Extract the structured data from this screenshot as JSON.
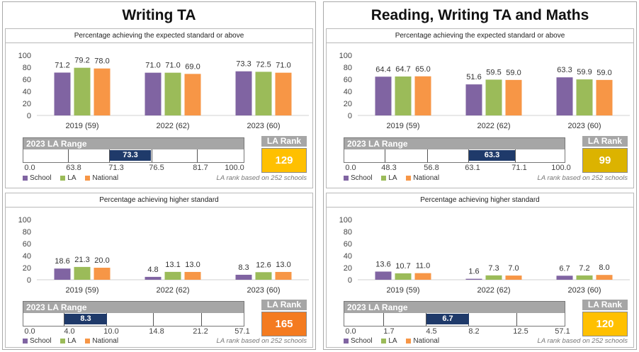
{
  "colors": {
    "school": "#8064a2",
    "la": "#9bbb59",
    "national": "#f79646",
    "marker": "#1f3a6a"
  },
  "legend": {
    "school": "School",
    "la": "LA",
    "national": "National"
  },
  "note": "LA rank based on 252 schools",
  "panels": [
    {
      "title": "Writing TA",
      "sections": [
        {
          "header": "Percentage achieving the expected standard or above",
          "range_title": "2023 LA Range",
          "range_ticks": [
            "0.0",
            "63.8",
            "71.3",
            "76.5",
            "81.7",
            "100.0"
          ],
          "marker_value": "73.3",
          "rank_label": "LA Rank",
          "rank_value": "129",
          "rank_color": "#ffc000"
        },
        {
          "header": "Percentage achieving higher standard",
          "range_title": "2023 LA Range",
          "range_ticks": [
            "0.0",
            "4.0",
            "10.0",
            "14.8",
            "21.2",
            "57.1"
          ],
          "marker_value": "8.3",
          "rank_label": "LA Rank",
          "rank_value": "165",
          "rank_color": "#f47b20"
        }
      ]
    },
    {
      "title": "Reading, Writing TA and Maths",
      "sections": [
        {
          "header": "Percentage achieving the expected standard or above",
          "range_title": "2023 LA Range",
          "range_ticks": [
            "0.0",
            "48.3",
            "56.8",
            "63.1",
            "71.1",
            "100.0"
          ],
          "marker_value": "63.3",
          "rank_label": "LA Rank",
          "rank_value": "99",
          "rank_color": "#dcb300"
        },
        {
          "header": "Percentage achieving higher standard",
          "range_title": "2023 LA Range",
          "range_ticks": [
            "0.0",
            "1.7",
            "4.5",
            "8.2",
            "12.5",
            "57.1"
          ],
          "marker_value": "6.7",
          "rank_label": "LA Rank",
          "rank_value": "120",
          "rank_color": "#ffc000"
        }
      ]
    }
  ],
  "chart_data": [
    {
      "type": "bar",
      "categories": [
        "2019 (59)",
        "2022 (62)",
        "2023 (60)"
      ],
      "ylim": [
        0,
        100
      ],
      "yticks": [
        0,
        20,
        40,
        60,
        80,
        100
      ],
      "series": [
        {
          "name": "School",
          "values": [
            71.2,
            71.0,
            73.3
          ],
          "labels": [
            "71.2",
            "71.0",
            "73.3"
          ]
        },
        {
          "name": "LA",
          "values": [
            79.2,
            71.0,
            72.5
          ],
          "labels": [
            "79.2",
            "71.0",
            "72.5"
          ]
        },
        {
          "name": "National",
          "values": [
            78.0,
            69.0,
            71.0
          ],
          "labels": [
            "78.0",
            "69.0",
            "71.0"
          ]
        }
      ]
    },
    {
      "type": "bar",
      "categories": [
        "2019 (59)",
        "2022 (62)",
        "2023 (60)"
      ],
      "ylim": [
        0,
        100
      ],
      "yticks": [
        0,
        20,
        40,
        60,
        80,
        100
      ],
      "series": [
        {
          "name": "School",
          "values": [
            18.6,
            4.8,
            8.3
          ],
          "labels": [
            "18.6",
            "4.8",
            "8.3"
          ]
        },
        {
          "name": "LA",
          "values": [
            21.3,
            13.1,
            12.6
          ],
          "labels": [
            "21.3",
            "13.1",
            "12.6"
          ]
        },
        {
          "name": "National",
          "values": [
            20.0,
            13.0,
            13.0
          ],
          "labels": [
            "20.0",
            "13.0",
            "13.0"
          ]
        }
      ]
    },
    {
      "type": "bar",
      "categories": [
        "2019 (59)",
        "2022 (62)",
        "2023 (60)"
      ],
      "ylim": [
        0,
        100
      ],
      "yticks": [
        0,
        20,
        40,
        60,
        80,
        100
      ],
      "series": [
        {
          "name": "School",
          "values": [
            64.4,
            51.6,
            63.3
          ],
          "labels": [
            "64.4",
            "51.6",
            "63.3"
          ]
        },
        {
          "name": "LA",
          "values": [
            64.7,
            59.5,
            59.9
          ],
          "labels": [
            "64.7",
            "59.5",
            "59.9"
          ]
        },
        {
          "name": "National",
          "values": [
            65.0,
            59.0,
            59.0
          ],
          "labels": [
            "65.0",
            "59.0",
            "59.0"
          ]
        }
      ]
    },
    {
      "type": "bar",
      "categories": [
        "2019 (59)",
        "2022 (62)",
        "2023 (60)"
      ],
      "ylim": [
        0,
        100
      ],
      "yticks": [
        0,
        20,
        40,
        60,
        80,
        100
      ],
      "series": [
        {
          "name": "School",
          "values": [
            13.6,
            1.6,
            6.7
          ],
          "labels": [
            "13.6",
            "1.6",
            "6.7"
          ]
        },
        {
          "name": "LA",
          "values": [
            10.7,
            7.3,
            7.2
          ],
          "labels": [
            "10.7",
            "7.3",
            "7.2"
          ]
        },
        {
          "name": "National",
          "values": [
            11.0,
            7.0,
            8.0
          ],
          "labels": [
            "11.0",
            "7.0",
            "8.0"
          ]
        }
      ]
    }
  ]
}
